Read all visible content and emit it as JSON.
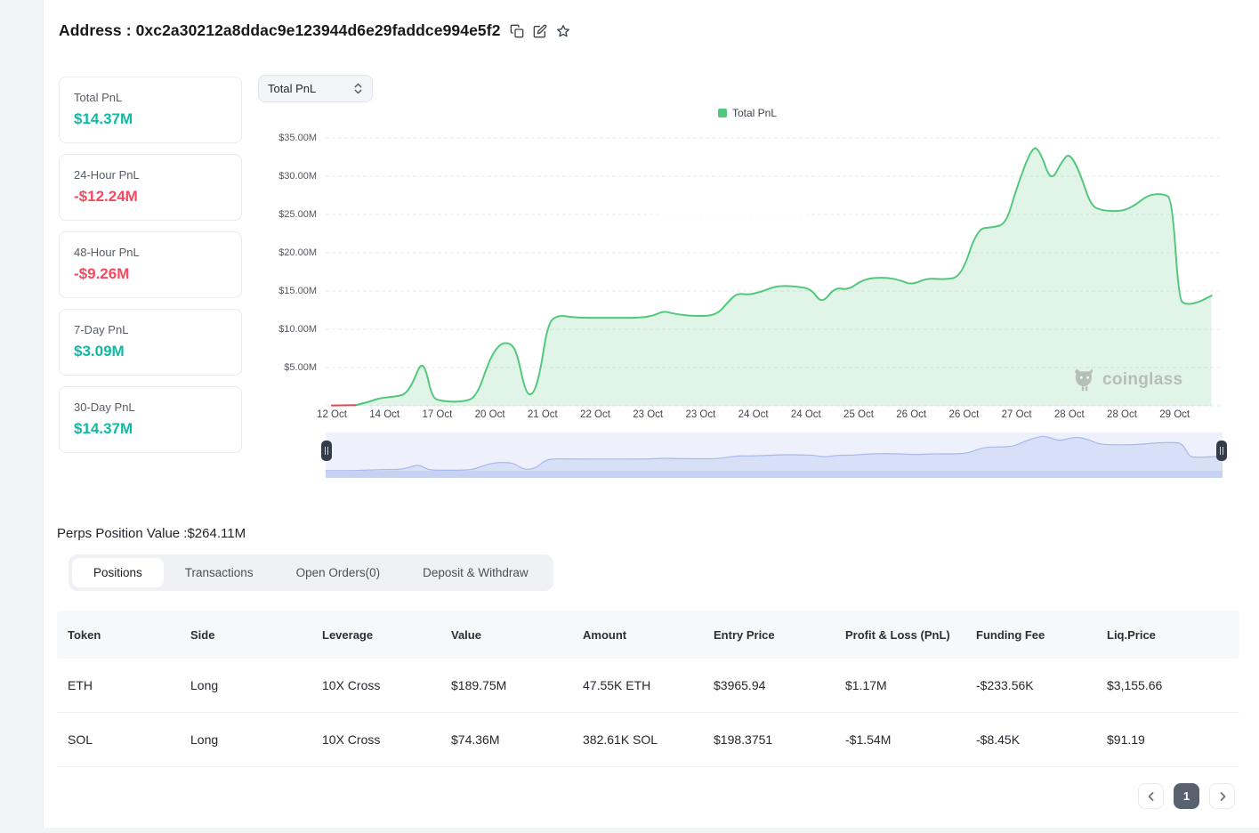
{
  "header": {
    "title": "Address : 0xc2a30212a8ddac9e123944d6e29faddce994e5f2",
    "icons": [
      "copy-icon",
      "edit-icon",
      "star-icon"
    ]
  },
  "stats": [
    {
      "label": "Total PnL",
      "value": "$14.37M",
      "trend": "positive"
    },
    {
      "label": "24-Hour PnL",
      "value": "-$12.24M",
      "trend": "negative"
    },
    {
      "label": "48-Hour PnL",
      "value": "-$9.26M",
      "trend": "negative"
    },
    {
      "label": "7-Day PnL",
      "value": "$3.09M",
      "trend": "positive"
    },
    {
      "label": "30-Day PnL",
      "value": "$14.37M",
      "trend": "positive"
    }
  ],
  "chart_controls": {
    "metric_select": "Total PnL"
  },
  "chart_data": {
    "type": "area",
    "title": "Total PnL",
    "legend": [
      {
        "label": "Total PnL",
        "color": "#53c87d"
      }
    ],
    "legend_position": "top",
    "grid": "horizontal dashed",
    "watermark": "coinglass",
    "x_labels": [
      "12 Oct",
      "14 Oct",
      "17 Oct",
      "20 Oct",
      "21 Oct",
      "22 Oct",
      "23 Oct",
      "23 Oct",
      "24 Oct",
      "24 Oct",
      "25 Oct",
      "26 Oct",
      "26 Oct",
      "27 Oct",
      "28 Oct",
      "28 Oct",
      "29 Oct"
    ],
    "y_ticks": [
      "$35.00M",
      "$30.00M",
      "$25.00M",
      "$20.00M",
      "$15.00M",
      "$10.00M",
      "$5.00M"
    ],
    "y_tick_values": [
      35,
      30,
      25,
      20,
      15,
      10,
      5
    ],
    "ylim": [
      0,
      37
    ],
    "unit": "million USD",
    "negative_segment": [
      [
        0,
        0.05
      ],
      [
        0.45,
        0.08
      ]
    ],
    "series": [
      {
        "name": "Total PnL",
        "points": [
          [
            0.45,
            0.08
          ],
          [
            0.7,
            0.5
          ],
          [
            0.9,
            1.0
          ],
          [
            1.2,
            1.2
          ],
          [
            1.4,
            1.5
          ],
          [
            1.55,
            3.2
          ],
          [
            1.68,
            5.5
          ],
          [
            1.78,
            4.9
          ],
          [
            1.9,
            1.2
          ],
          [
            2.05,
            0.6
          ],
          [
            2.5,
            0.5
          ],
          [
            2.75,
            1.2
          ],
          [
            3.0,
            6.2
          ],
          [
            3.2,
            8.2
          ],
          [
            3.4,
            8.2
          ],
          [
            3.52,
            6.8
          ],
          [
            3.68,
            1.6
          ],
          [
            3.82,
            1.4
          ],
          [
            3.95,
            4.2
          ],
          [
            4.1,
            10.8
          ],
          [
            4.3,
            11.9
          ],
          [
            4.6,
            11.5
          ],
          [
            5.3,
            11.5
          ],
          [
            5.9,
            11.5
          ],
          [
            6.15,
            11.9
          ],
          [
            6.3,
            12.4
          ],
          [
            6.5,
            12.0
          ],
          [
            6.9,
            11.7
          ],
          [
            7.3,
            11.8
          ],
          [
            7.55,
            13.8
          ],
          [
            7.7,
            14.7
          ],
          [
            7.9,
            14.5
          ],
          [
            8.15,
            14.9
          ],
          [
            8.45,
            15.7
          ],
          [
            8.8,
            15.6
          ],
          [
            9.1,
            15.3
          ],
          [
            9.3,
            13.3
          ],
          [
            9.55,
            15.5
          ],
          [
            9.8,
            15.1
          ],
          [
            10.1,
            16.6
          ],
          [
            10.5,
            16.8
          ],
          [
            10.8,
            16.4
          ],
          [
            11.0,
            15.8
          ],
          [
            11.3,
            16.7
          ],
          [
            11.6,
            16.5
          ],
          [
            11.95,
            16.8
          ],
          [
            12.25,
            23.2
          ],
          [
            12.55,
            23.3
          ],
          [
            12.8,
            23.8
          ],
          [
            13.0,
            28.5
          ],
          [
            13.3,
            34.0
          ],
          [
            13.45,
            33.2
          ],
          [
            13.65,
            29.2
          ],
          [
            13.85,
            31.8
          ],
          [
            14.0,
            33.1
          ],
          [
            14.2,
            30.5
          ],
          [
            14.4,
            26.3
          ],
          [
            14.6,
            25.5
          ],
          [
            15.0,
            25.4
          ],
          [
            15.25,
            26.2
          ],
          [
            15.5,
            27.6
          ],
          [
            15.8,
            27.7
          ],
          [
            15.95,
            27.0
          ],
          [
            16.08,
            14.0
          ],
          [
            16.2,
            13.2
          ],
          [
            16.45,
            13.5
          ],
          [
            16.7,
            14.4
          ]
        ]
      }
    ]
  },
  "perps": {
    "title": "Perps Position Value :$264.11M"
  },
  "tabs": [
    {
      "label": "Positions",
      "active": true
    },
    {
      "label": "Transactions",
      "active": false
    },
    {
      "label": "Open Orders(0)",
      "active": false
    },
    {
      "label": "Deposit & Withdraw",
      "active": false
    }
  ],
  "table": {
    "columns": [
      "Token",
      "Side",
      "Leverage",
      "Value",
      "Amount",
      "Entry Price",
      "Profit & Loss (PnL)",
      "Funding Fee",
      "Liq.Price"
    ],
    "rows": [
      {
        "token": "ETH",
        "side": "Long",
        "leverage": "10X Cross",
        "value": "$189.75M",
        "amount": "47.55K ETH",
        "entry_price": "$3965.94",
        "pnl": "$1.17M",
        "funding_fee": "-$233.56K",
        "liq_price": "$3,155.66"
      },
      {
        "token": "SOL",
        "side": "Long",
        "leverage": "10X Cross",
        "value": "$74.36M",
        "amount": "382.61K SOL",
        "entry_price": "$198.3751",
        "pnl": "-$1.54M",
        "funding_fee": "-$8.45K",
        "liq_price": "$91.19"
      }
    ]
  },
  "pagination": {
    "current_page": "1"
  },
  "colors": {
    "positive": "#10b9a2",
    "negative": "#f5495f",
    "chart_line": "#53c87d",
    "chart_fill": "rgba(83,200,125,0.18)",
    "chart_negative_line": "#dd4b50",
    "nav_line": "#a9b8ec",
    "nav_fill": "#d8e0f8",
    "nav_track": "#c7d2f3"
  }
}
